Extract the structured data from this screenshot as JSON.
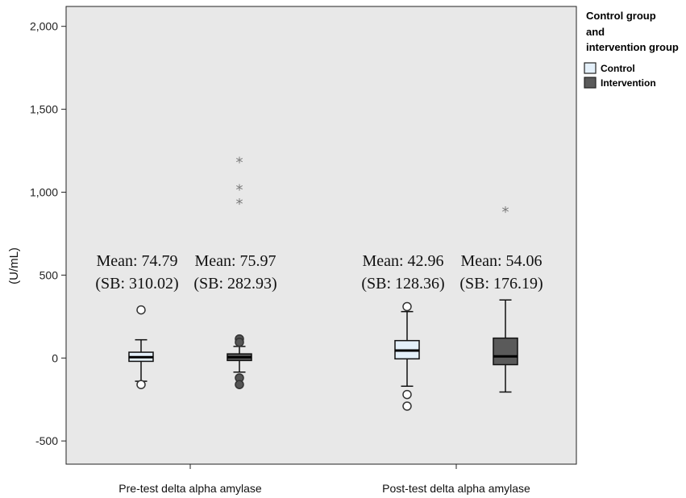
{
  "chart_data": {
    "type": "boxplot",
    "ylabel": "(U/mL)",
    "xlabel": "",
    "ylim": [
      -640,
      2120
    ],
    "yticks": [
      -500,
      0,
      500,
      1000,
      1500,
      2000
    ],
    "ytick_labels": [
      "-500",
      "0",
      "500",
      "1,000",
      "1,500",
      "2,000"
    ],
    "categories": [
      "Pre-test delta alpha amylase",
      "Post-test delta alpha amylase"
    ],
    "grid": false,
    "legend": {
      "title_lines": [
        "Control group",
        "and",
        "intervention group"
      ],
      "placement": "right",
      "entries": [
        {
          "name": "Control",
          "color": "#e4f0fa"
        },
        {
          "name": "Intervention",
          "color": "#5a5a5a"
        }
      ]
    },
    "colors": {
      "plot_background": "#e8e8e8",
      "control_fill": "#e4f0fa",
      "intervention_fill": "#5a5a5a",
      "star": "#7a7a7a"
    },
    "boxes": [
      {
        "category": "Pre-test delta alpha amylase",
        "series": "Control",
        "min": -140,
        "q1": -20,
        "median": 5,
        "q3": 35,
        "max": 110,
        "outliers": [
          290,
          -160
        ],
        "extremes": [],
        "annotation": [
          "Mean: 74.79",
          "(SB: 310.02)"
        ]
      },
      {
        "category": "Pre-test delta alpha amylase",
        "series": "Intervention",
        "min": -85,
        "q1": -15,
        "median": 5,
        "q3": 25,
        "max": 70,
        "outliers": [
          115,
          95,
          -120,
          -160
        ],
        "extremes": [
          1190,
          1025,
          940
        ],
        "annotation": [
          "Mean: 75.97",
          "(SB: 282.93)"
        ]
      },
      {
        "category": "Post-test delta alpha amylase",
        "series": "Control",
        "min": -170,
        "q1": -5,
        "median": 45,
        "q3": 105,
        "max": 280,
        "outliers": [
          310,
          -220,
          -290
        ],
        "extremes": [],
        "annotation": [
          "Mean: 42.96",
          "(SB: 128.36)"
        ]
      },
      {
        "category": "Post-test delta alpha amylase",
        "series": "Intervention",
        "min": -205,
        "q1": -40,
        "median": 10,
        "q3": 120,
        "max": 350,
        "outliers": [],
        "extremes": [
          890
        ],
        "annotation": [
          "Mean: 54.06",
          "(SB: 176.19)"
        ]
      }
    ]
  }
}
